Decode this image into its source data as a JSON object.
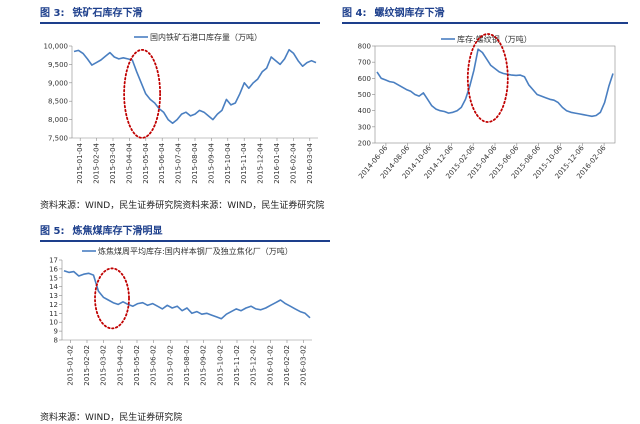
{
  "figures": [
    {
      "title_prefix": "图 3:",
      "title": "铁矿石库存下滑"
    },
    {
      "title_prefix": "图 4:",
      "title": "螺纹钢库存下滑"
    },
    {
      "title_prefix": "图 5:",
      "title": "炼焦煤库存下滑明显"
    }
  ],
  "sources": [
    "资料来源：WIND，民生证券研究院资料来源：WIND，民生证券研究院",
    "资料来源：WIND，民生证券研究院"
  ],
  "colors": {
    "line": "#4a7fc1",
    "highlight": "#c00000",
    "title": "#1d3f8c"
  },
  "chart_data": [
    {
      "type": "line",
      "series": [
        {
          "name": "国内铁矿石港口库存量（万吨）",
          "values": [
            9850,
            9880,
            9800,
            9650,
            9480,
            9550,
            9620,
            9720,
            9820,
            9700,
            9650,
            9680,
            9650,
            9620,
            9300,
            9000,
            8700,
            8550,
            8450,
            8300,
            8200,
            8000,
            7900,
            8000,
            8150,
            8200,
            8100,
            8150,
            8250,
            8200,
            8100,
            8000,
            8150,
            8250,
            8550,
            8400,
            8450,
            8700,
            9000,
            8850,
            9000,
            9100,
            9300,
            9400,
            9700,
            9600,
            9500,
            9650,
            9900,
            9800,
            9600,
            9450,
            9550,
            9600,
            9550
          ]
        }
      ],
      "x_ticks": [
        "2015-01-04",
        "2015-02-04",
        "2015-03-04",
        "2015-04-04",
        "2015-05-04",
        "2015-06-04",
        "2015-07-04",
        "2015-08-04",
        "2015-09-04",
        "2015-10-04",
        "2015-11-04",
        "2015-12-04",
        "2016-01-04",
        "2016-02-04",
        "2016-03-04"
      ],
      "y_ticks": [
        "10,000",
        "9,500",
        "9,000",
        "8,500",
        "8,000",
        "7,500"
      ],
      "ylim": [
        7500,
        10000
      ]
    },
    {
      "type": "line",
      "series": [
        {
          "name": "库存:螺纹钢（万吨）",
          "values": [
            640,
            600,
            590,
            580,
            575,
            560,
            545,
            530,
            520,
            500,
            490,
            510,
            470,
            430,
            410,
            400,
            395,
            385,
            390,
            400,
            420,
            470,
            550,
            650,
            780,
            760,
            720,
            680,
            660,
            640,
            630,
            625,
            620,
            618,
            620,
            610,
            560,
            530,
            500,
            490,
            480,
            470,
            465,
            450,
            420,
            400,
            390,
            385,
            380,
            375,
            370,
            365,
            370,
            390,
            450,
            550,
            630
          ]
        }
      ],
      "x_ticks": [
        "2014-06-06",
        "2014-08-06",
        "2014-10-06",
        "2014-12-06",
        "2015-02-06",
        "2015-04-06",
        "2015-06-06",
        "2015-08-06",
        "2015-10-06",
        "2015-12-06",
        "2016-02-06"
      ],
      "y_ticks": [
        "800",
        "700",
        "600",
        "500",
        "400",
        "300",
        "200"
      ],
      "ylim": [
        200,
        800
      ]
    },
    {
      "type": "line",
      "series": [
        {
          "name": "炼焦煤周平均库存:国内样本钢厂及独立焦化厂（万吨）",
          "values": [
            15.8,
            15.6,
            15.7,
            15.2,
            15.4,
            15.5,
            15.3,
            13.5,
            12.8,
            12.5,
            12.2,
            12.0,
            12.3,
            12.0,
            11.8,
            12.1,
            12.2,
            11.9,
            12.1,
            11.8,
            11.5,
            11.9,
            11.6,
            11.8,
            11.3,
            11.6,
            11.0,
            11.2,
            10.9,
            11.0,
            10.8,
            10.6,
            10.4,
            10.9,
            11.2,
            11.5,
            11.3,
            11.6,
            11.8,
            11.5,
            11.4,
            11.6,
            11.9,
            12.2,
            12.5,
            12.1,
            11.8,
            11.5,
            11.2,
            11.0,
            10.5
          ]
        }
      ],
      "x_ticks": [
        "2015-01-02",
        "2015-02-02",
        "2015-03-02",
        "2015-04-02",
        "2015-05-02",
        "2015-06-02",
        "2015-07-02",
        "2015-08-02",
        "2015-09-02",
        "2015-10-02",
        "2015-11-02",
        "2015-12-02",
        "2016-01-02",
        "2016-02-02",
        "2016-03-02"
      ],
      "y_ticks": [
        "17",
        "16",
        "15",
        "14",
        "13",
        "12",
        "11",
        "10",
        "9",
        "8"
      ],
      "ylim": [
        8,
        17
      ]
    }
  ]
}
